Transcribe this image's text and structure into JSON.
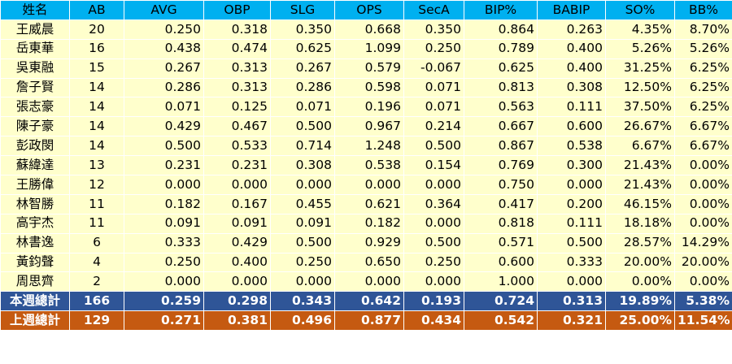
{
  "headers": [
    "姓名",
    "AB",
    "AVG",
    "OBP",
    "SLG",
    "OPS",
    "SecA",
    "BIP%",
    "BABIP",
    "SO%",
    "BB%"
  ],
  "players": [
    [
      "王威晨",
      "20",
      "0.250",
      "0.318",
      "0.350",
      "0.668",
      "0.350",
      "0.864",
      "0.263",
      "4.35%",
      "8.70%"
    ],
    [
      "岳東華",
      "16",
      "0.438",
      "0.474",
      "0.625",
      "1.099",
      "0.250",
      "0.789",
      "0.400",
      "5.26%",
      "5.26%"
    ],
    [
      "吳東融",
      "15",
      "0.267",
      "0.313",
      "0.267",
      "0.579",
      "-0.067",
      "0.625",
      "0.400",
      "31.25%",
      "6.25%"
    ],
    [
      "詹子賢",
      "14",
      "0.286",
      "0.313",
      "0.286",
      "0.598",
      "0.071",
      "0.813",
      "0.308",
      "12.50%",
      "6.25%"
    ],
    [
      "張志豪",
      "14",
      "0.071",
      "0.125",
      "0.071",
      "0.196",
      "0.071",
      "0.563",
      "0.111",
      "37.50%",
      "6.25%"
    ],
    [
      "陳子豪",
      "14",
      "0.429",
      "0.467",
      "0.500",
      "0.967",
      "0.214",
      "0.667",
      "0.600",
      "26.67%",
      "6.67%"
    ],
    [
      "彭政閔",
      "14",
      "0.500",
      "0.533",
      "0.714",
      "1.248",
      "0.500",
      "0.867",
      "0.538",
      "6.67%",
      "6.67%"
    ],
    [
      "蘇緯達",
      "13",
      "0.231",
      "0.231",
      "0.308",
      "0.538",
      "0.154",
      "0.769",
      "0.300",
      "21.43%",
      "0.00%"
    ],
    [
      "王勝偉",
      "12",
      "0.000",
      "0.000",
      "0.000",
      "0.000",
      "0.000",
      "0.750",
      "0.000",
      "21.43%",
      "0.00%"
    ],
    [
      "林智勝",
      "11",
      "0.182",
      "0.167",
      "0.455",
      "0.621",
      "0.364",
      "0.417",
      "0.200",
      "46.15%",
      "0.00%"
    ],
    [
      "高宇杰",
      "11",
      "0.091",
      "0.091",
      "0.091",
      "0.182",
      "0.000",
      "0.818",
      "0.111",
      "18.18%",
      "0.00%"
    ],
    [
      "林書逸",
      "6",
      "0.333",
      "0.429",
      "0.500",
      "0.929",
      "0.500",
      "0.571",
      "0.500",
      "28.57%",
      "14.29%"
    ],
    [
      "黃鈞聲",
      "4",
      "0.250",
      "0.400",
      "0.250",
      "0.650",
      "0.250",
      "0.600",
      "0.333",
      "20.00%",
      "20.00%"
    ],
    [
      "周思齊",
      "2",
      "0.000",
      "0.000",
      "0.000",
      "0.000",
      "0.000",
      "1.000",
      "0.000",
      "0.00%",
      "0.00%"
    ]
  ],
  "total_this_week": [
    "本週總計",
    "166",
    "0.259",
    "0.298",
    "0.343",
    "0.642",
    "0.193",
    "0.724",
    "0.313",
    "19.89%",
    "5.38%"
  ],
  "total_last_week": [
    "上週總計",
    "129",
    "0.271",
    "0.381",
    "0.496",
    "0.877",
    "0.434",
    "0.542",
    "0.321",
    "25.00%",
    "11.54%"
  ],
  "colors": {
    "header": "#00b0f0",
    "row": "#ffffcc",
    "this_week": "#2f5597",
    "last_week": "#c55a11"
  }
}
